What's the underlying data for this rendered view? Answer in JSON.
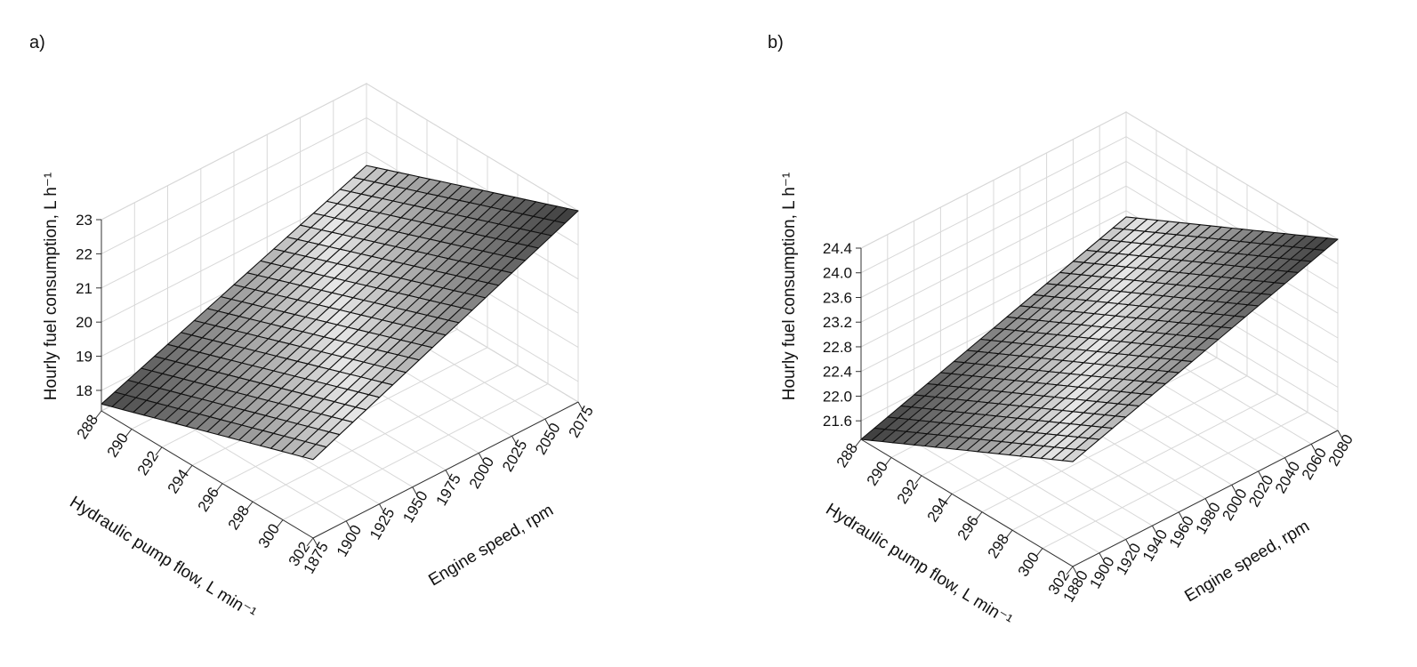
{
  "chart_data": [
    {
      "type": "surface",
      "panel_label": "a)",
      "xlabel": "Engine speed, rpm",
      "ylabel": "Hydraulic pump flow, L min⁻¹",
      "zlabel": "Hourly fuel consumption, L h⁻¹",
      "x_ticks": [
        "1875",
        "1900",
        "1925",
        "1950",
        "1975",
        "2000",
        "2025",
        "2050",
        "2075"
      ],
      "y_ticks": [
        "288",
        "290",
        "292",
        "294",
        "296",
        "298",
        "300",
        "302"
      ],
      "z_ticks": [
        "18",
        "19",
        "20",
        "21",
        "22",
        "23"
      ],
      "xlim": [
        1875,
        2075
      ],
      "ylim": [
        288,
        302
      ],
      "zlim": [
        17.4,
        23.0
      ],
      "grid": true,
      "shading": "grayscale, lighter in the middle of the z range",
      "surface_corners": [
        {
          "x": 1875,
          "y": 288,
          "z": 17.6
        },
        {
          "x": 2075,
          "y": 288,
          "z": 20.6
        },
        {
          "x": 1875,
          "y": 302,
          "z": 19.7
        },
        {
          "x": 2075,
          "y": 302,
          "z": 23.0
        }
      ]
    },
    {
      "type": "surface",
      "panel_label": "b)",
      "xlabel": "Engine speed, rpm",
      "ylabel": "Hydraulic pump flow, L min⁻¹",
      "zlabel": "Hourly fuel consumption, L h⁻¹",
      "x_ticks": [
        "1880",
        "1900",
        "1920",
        "1940",
        "1960",
        "1980",
        "2000",
        "2020",
        "2040",
        "2060",
        "2080"
      ],
      "y_ticks": [
        "288",
        "290",
        "292",
        "294",
        "296",
        "298",
        "300",
        "302"
      ],
      "z_ticks": [
        "21.6",
        "22.0",
        "22.4",
        "22.8",
        "23.2",
        "23.6",
        "24.0",
        "24.4"
      ],
      "xlim": [
        1880,
        2080
      ],
      "ylim": [
        288,
        302
      ],
      "zlim": [
        21.3,
        24.4
      ],
      "grid": true,
      "shading": "grayscale, lighter in the middle of the z range",
      "surface_corners": [
        {
          "x": 1880,
          "y": 288,
          "z": 21.3
        },
        {
          "x": 2080,
          "y": 288,
          "z": 22.7
        },
        {
          "x": 1880,
          "y": 302,
          "z": 23.0
        },
        {
          "x": 2080,
          "y": 302,
          "z": 24.4
        }
      ]
    }
  ]
}
